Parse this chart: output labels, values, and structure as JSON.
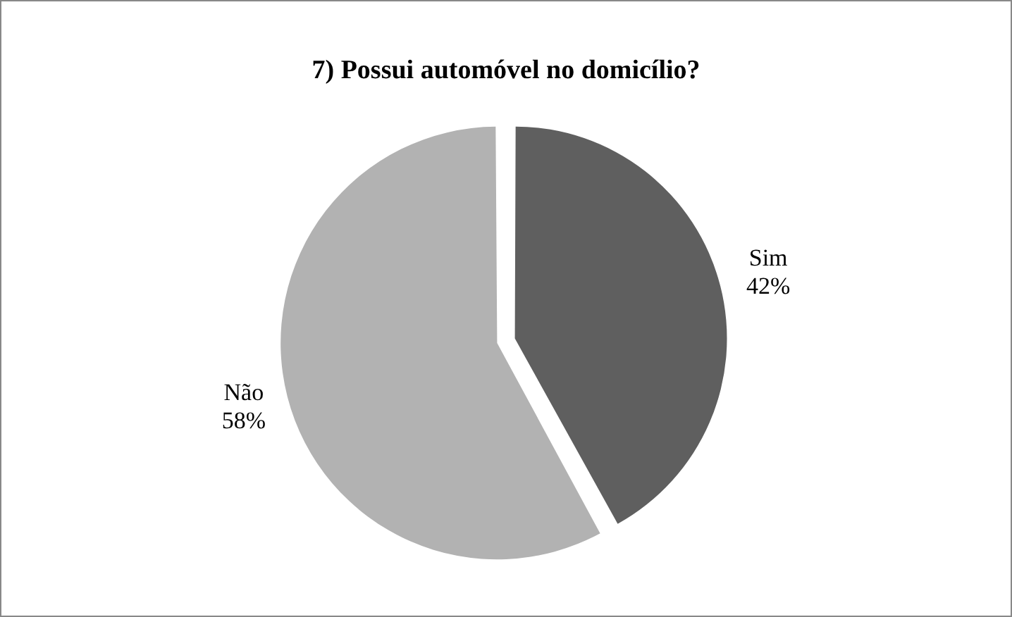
{
  "chart_data": {
    "type": "pie",
    "title": "7) Possui automóvel no domicílio?",
    "categories": [
      "Sim",
      "Não"
    ],
    "values": [
      42,
      58
    ],
    "value_labels": [
      "42%",
      "58%"
    ],
    "colors": [
      "#5f5f5f",
      "#b2b2b2"
    ],
    "legend": false
  }
}
